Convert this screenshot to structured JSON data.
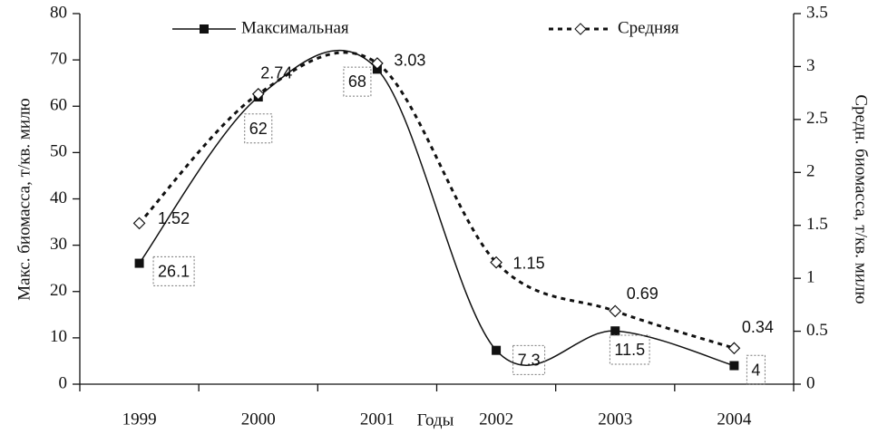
{
  "chart_data": {
    "type": "line",
    "categories": [
      "1999",
      "2000",
      "2001",
      "2002",
      "2003",
      "2004"
    ],
    "xlabel": "Годы",
    "ylabel": "Макс. биомасса, т/кв. милю",
    "y2label": "Средн. биомасса, т/кв. милю",
    "series": [
      {
        "name": "Максимальная",
        "color": "#111111",
        "values": [
          26.1,
          62,
          68,
          7.3,
          11.5,
          4
        ]
      },
      {
        "name": "Средняя",
        "color": "#111111",
        "axis": "y2",
        "values": [
          1.52,
          2.74,
          3.03,
          1.15,
          0.69,
          0.34
        ]
      }
    ],
    "ylim": [
      0,
      80
    ],
    "yticks": [
      0,
      10,
      20,
      30,
      40,
      50,
      60,
      70,
      80
    ],
    "y2lim": [
      0,
      3.5
    ],
    "y2ticks": [
      0,
      0.5,
      1,
      1.5,
      2,
      2.5,
      3,
      3.5
    ]
  }
}
